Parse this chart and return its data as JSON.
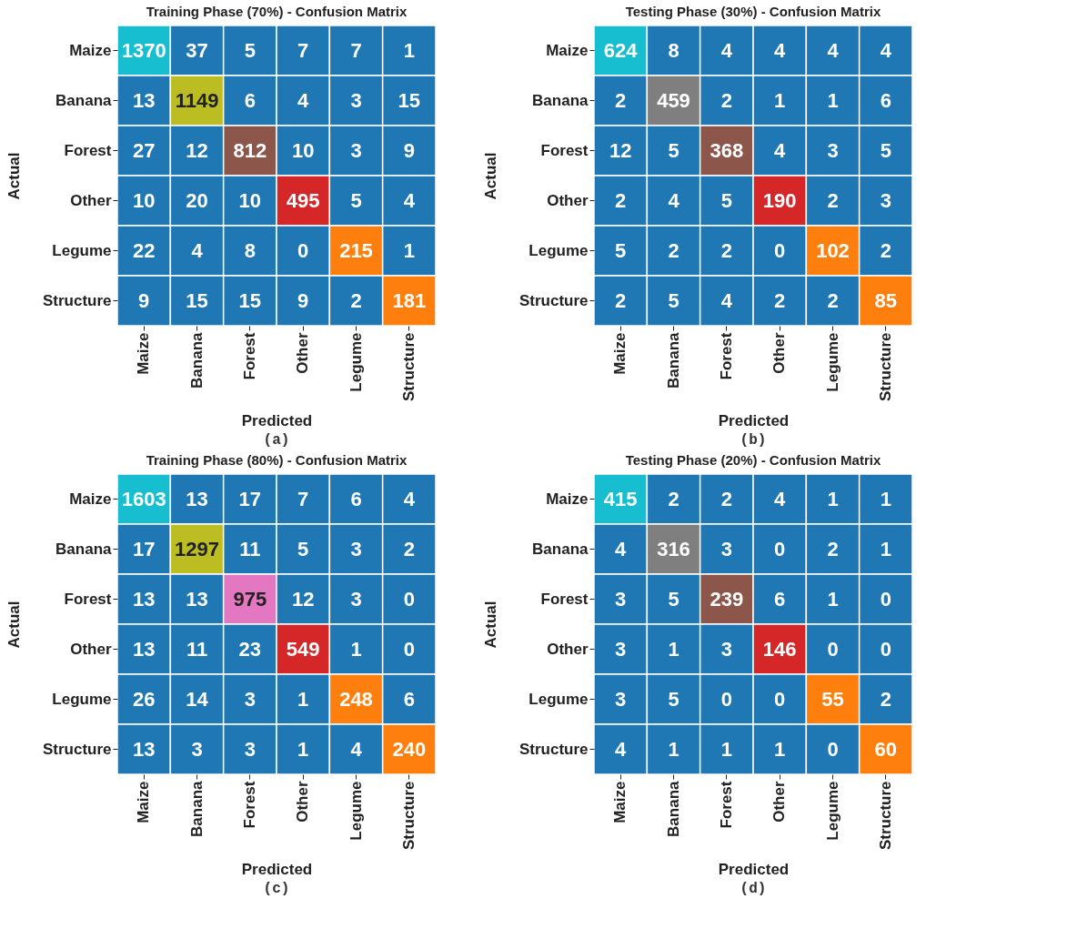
{
  "chart_data": [
    {
      "type": "heatmap",
      "title": "Training Phase (70%) - Confusion Matrix",
      "xlabel": "Predicted",
      "ylabel": "Actual",
      "categories": [
        "Maize",
        "Banana",
        "Forest",
        "Other",
        "Legume",
        "Structure"
      ],
      "y_categories": [
        "Maize",
        "Banana",
        "Forest",
        "Other",
        "Legume",
        "Structure"
      ],
      "cells": [
        [
          1370,
          37,
          5,
          7,
          7,
          1
        ],
        [
          13,
          1149,
          6,
          4,
          3,
          15
        ],
        [
          27,
          12,
          812,
          10,
          3,
          9
        ],
        [
          10,
          20,
          10,
          495,
          5,
          4
        ],
        [
          22,
          4,
          8,
          0,
          215,
          1
        ],
        [
          9,
          15,
          15,
          9,
          2,
          181
        ]
      ],
      "colors": [
        [
          "#17becf",
          "#1f77b4",
          "#1f77b4",
          "#1f77b4",
          "#1f77b4",
          "#1f77b4"
        ],
        [
          "#1f77b4",
          "#bcbd22",
          "#1f77b4",
          "#1f77b4",
          "#1f77b4",
          "#1f77b4"
        ],
        [
          "#1f77b4",
          "#1f77b4",
          "#8c564b",
          "#1f77b4",
          "#1f77b4",
          "#1f77b4"
        ],
        [
          "#1f77b4",
          "#1f77b4",
          "#1f77b4",
          "#d62728",
          "#1f77b4",
          "#1f77b4"
        ],
        [
          "#1f77b4",
          "#1f77b4",
          "#1f77b4",
          "#1f77b4",
          "#ff7f0e",
          "#1f77b4"
        ],
        [
          "#1f77b4",
          "#1f77b4",
          "#1f77b4",
          "#1f77b4",
          "#1f77b4",
          "#ff7f0e"
        ]
      ],
      "data_labels": true,
      "annotations": [
        "(a)"
      ]
    },
    {
      "type": "heatmap",
      "title": "Testing Phase (30%) - Confusion Matrix",
      "xlabel": "Predicted",
      "ylabel": "Actual",
      "categories": [
        "Maize",
        "Banana",
        "Forest",
        "Other",
        "Legume",
        "Structure"
      ],
      "y_categories": [
        "Maize",
        "Banana",
        "Forest",
        "Other",
        "Legume",
        "Structure"
      ],
      "cells": [
        [
          624,
          8,
          4,
          4,
          4,
          4
        ],
        [
          2,
          459,
          2,
          1,
          1,
          6
        ],
        [
          12,
          5,
          368,
          4,
          3,
          5
        ],
        [
          2,
          4,
          5,
          190,
          2,
          3
        ],
        [
          5,
          2,
          2,
          0,
          102,
          2
        ],
        [
          2,
          5,
          4,
          2,
          2,
          85
        ]
      ],
      "colors": [
        [
          "#17becf",
          "#1f77b4",
          "#1f77b4",
          "#1f77b4",
          "#1f77b4",
          "#1f77b4"
        ],
        [
          "#1f77b4",
          "#7f7f7f",
          "#1f77b4",
          "#1f77b4",
          "#1f77b4",
          "#1f77b4"
        ],
        [
          "#1f77b4",
          "#1f77b4",
          "#8c564b",
          "#1f77b4",
          "#1f77b4",
          "#1f77b4"
        ],
        [
          "#1f77b4",
          "#1f77b4",
          "#1f77b4",
          "#d62728",
          "#1f77b4",
          "#1f77b4"
        ],
        [
          "#1f77b4",
          "#1f77b4",
          "#1f77b4",
          "#1f77b4",
          "#ff7f0e",
          "#1f77b4"
        ],
        [
          "#1f77b4",
          "#1f77b4",
          "#1f77b4",
          "#1f77b4",
          "#1f77b4",
          "#ff7f0e"
        ]
      ],
      "data_labels": true,
      "annotations": [
        "(b)"
      ]
    },
    {
      "type": "heatmap",
      "title": "Training Phase (80%) - Confusion Matrix",
      "xlabel": "Predicted",
      "ylabel": "Actual",
      "categories": [
        "Maize",
        "Banana",
        "Forest",
        "Other",
        "Legume",
        "Structure"
      ],
      "y_categories": [
        "Maize",
        "Banana",
        "Forest",
        "Other",
        "Legume",
        "Structure"
      ],
      "cells": [
        [
          1603,
          13,
          17,
          7,
          6,
          4
        ],
        [
          17,
          1297,
          11,
          5,
          3,
          2
        ],
        [
          13,
          13,
          975,
          12,
          3,
          0
        ],
        [
          13,
          11,
          23,
          549,
          1,
          0
        ],
        [
          26,
          14,
          3,
          1,
          248,
          6
        ],
        [
          13,
          3,
          3,
          1,
          4,
          240
        ]
      ],
      "colors": [
        [
          "#17becf",
          "#1f77b4",
          "#1f77b4",
          "#1f77b4",
          "#1f77b4",
          "#1f77b4"
        ],
        [
          "#1f77b4",
          "#bcbd22",
          "#1f77b4",
          "#1f77b4",
          "#1f77b4",
          "#1f77b4"
        ],
        [
          "#1f77b4",
          "#1f77b4",
          "#e377c2",
          "#1f77b4",
          "#1f77b4",
          "#1f77b4"
        ],
        [
          "#1f77b4",
          "#1f77b4",
          "#1f77b4",
          "#d62728",
          "#1f77b4",
          "#1f77b4"
        ],
        [
          "#1f77b4",
          "#1f77b4",
          "#1f77b4",
          "#1f77b4",
          "#ff7f0e",
          "#1f77b4"
        ],
        [
          "#1f77b4",
          "#1f77b4",
          "#1f77b4",
          "#1f77b4",
          "#1f77b4",
          "#ff7f0e"
        ]
      ],
      "data_labels": true,
      "annotations": [
        "(c)"
      ]
    },
    {
      "type": "heatmap",
      "title": "Testing Phase (20%) - Confusion Matrix",
      "xlabel": "Predicted",
      "ylabel": "Actual",
      "categories": [
        "Maize",
        "Banana",
        "Forest",
        "Other",
        "Legume",
        "Structure"
      ],
      "y_categories": [
        "Maize",
        "Banana",
        "Forest",
        "Other",
        "Legume",
        "Structure"
      ],
      "cells": [
        [
          415,
          2,
          2,
          4,
          1,
          1
        ],
        [
          4,
          316,
          3,
          0,
          2,
          1
        ],
        [
          3,
          5,
          239,
          6,
          1,
          0
        ],
        [
          3,
          1,
          3,
          146,
          0,
          0
        ],
        [
          3,
          5,
          0,
          0,
          55,
          2
        ],
        [
          4,
          1,
          1,
          1,
          0,
          60
        ]
      ],
      "colors": [
        [
          "#17becf",
          "#1f77b4",
          "#1f77b4",
          "#1f77b4",
          "#1f77b4",
          "#1f77b4"
        ],
        [
          "#1f77b4",
          "#7f7f7f",
          "#1f77b4",
          "#1f77b4",
          "#1f77b4",
          "#1f77b4"
        ],
        [
          "#1f77b4",
          "#1f77b4",
          "#8c564b",
          "#1f77b4",
          "#1f77b4",
          "#1f77b4"
        ],
        [
          "#1f77b4",
          "#1f77b4",
          "#1f77b4",
          "#d62728",
          "#1f77b4",
          "#1f77b4"
        ],
        [
          "#1f77b4",
          "#1f77b4",
          "#1f77b4",
          "#1f77b4",
          "#ff7f0e",
          "#1f77b4"
        ],
        [
          "#1f77b4",
          "#1f77b4",
          "#1f77b4",
          "#1f77b4",
          "#1f77b4",
          "#ff7f0e"
        ]
      ],
      "data_labels": true,
      "annotations": [
        "(d)"
      ]
    }
  ]
}
